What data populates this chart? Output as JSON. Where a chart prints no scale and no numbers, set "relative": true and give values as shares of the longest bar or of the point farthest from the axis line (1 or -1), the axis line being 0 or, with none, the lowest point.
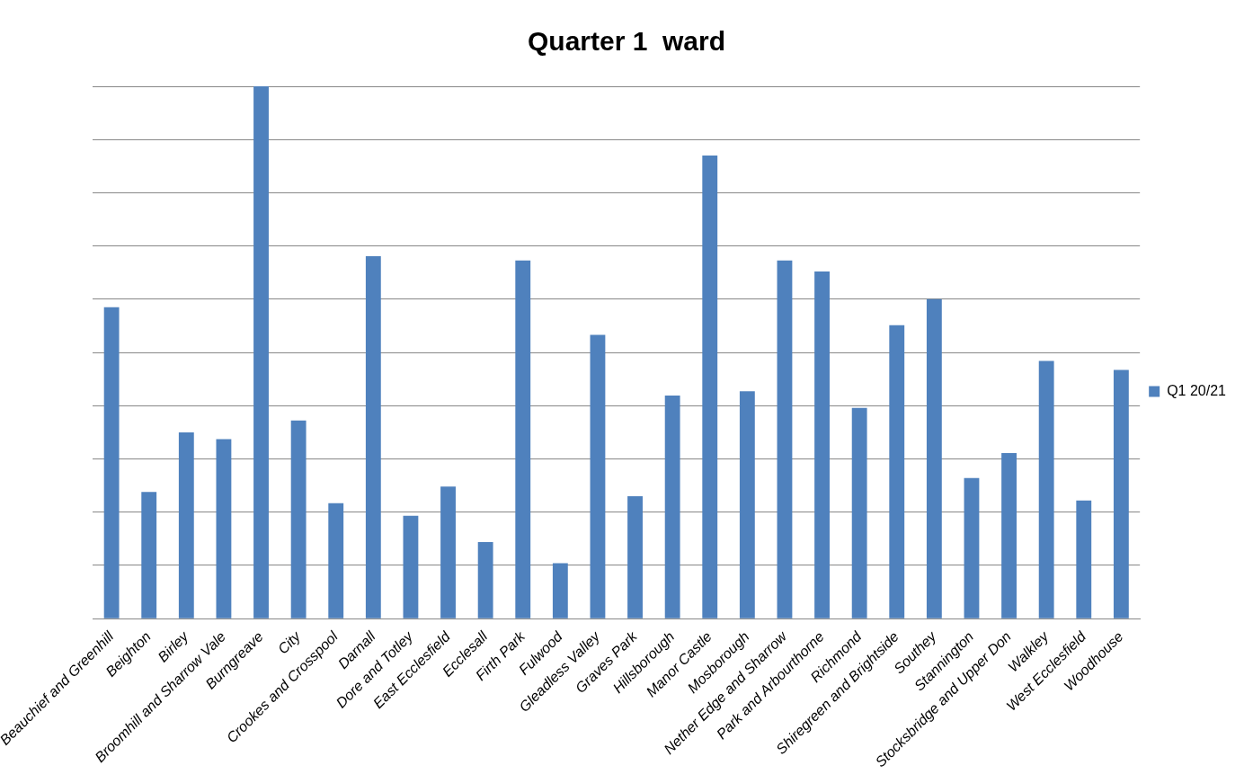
{
  "chart_data": {
    "type": "bar",
    "title": "Quarter 1  ward",
    "relative": true,
    "grid": "y",
    "legend": "right",
    "categories": [
      "Beauchief and Greenhill",
      "Beighton",
      "Birley",
      "Broomhill and Sharrow Vale",
      "Burngreave",
      "City",
      "Crookes and Crosspool",
      "Darnall",
      "Dore and Totley",
      "East Ecclesfield",
      "Ecclesall",
      "Firth Park",
      "Fulwood",
      "Gleadless Valley",
      "Graves Park",
      "Hillsborough",
      "Manor Castle",
      "Mosborough",
      "Nether Edge and Sharrow",
      "Park and Arbourthorne",
      "Richmond",
      "Shiregreen and Brightside",
      "Southey",
      "Stannington",
      "Stocksbridge and Upper Don",
      "Walkley",
      "West Ecclesfield",
      "Woodhouse"
    ],
    "series": [
      {
        "name": "Q1 20/21",
        "color": "#4f81bd",
        "values": [
          0.585,
          0.238,
          0.35,
          0.337,
          1,
          0.372,
          0.217,
          0.681,
          0.193,
          0.248,
          0.144,
          0.673,
          0.104,
          0.533,
          0.23,
          0.419,
          0.87,
          0.427,
          0.673,
          0.652,
          0.396,
          0.551,
          0.6,
          0.264,
          0.311,
          0.484,
          0.222,
          0.467
        ]
      }
    ]
  }
}
